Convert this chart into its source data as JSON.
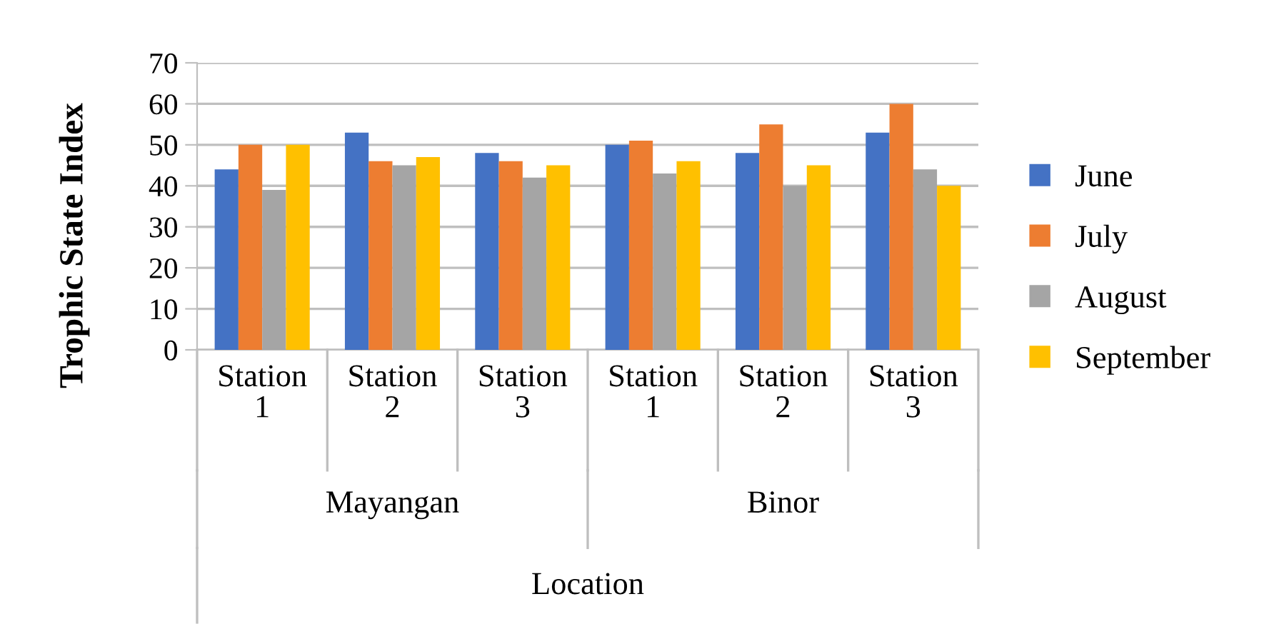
{
  "chart_data": {
    "type": "bar",
    "ylabel": "Trophic State Index",
    "xlabel": "Location",
    "categories": [
      "Station 1",
      "Station 2",
      "Station 3",
      "Station 1",
      "Station 2",
      "Station 3"
    ],
    "annotations": [
      "Mayangan",
      "Binor"
    ],
    "series": [
      {
        "name": "June",
        "color": "#4472c4",
        "values": [
          44,
          53,
          48,
          50,
          48,
          53
        ]
      },
      {
        "name": "July",
        "color": "#ed7d31",
        "values": [
          50,
          46,
          46,
          51,
          55,
          60
        ]
      },
      {
        "name": "August",
        "color": "#a5a5a5",
        "values": [
          39,
          45,
          42,
          43,
          40,
          44
        ]
      },
      {
        "name": "September",
        "color": "#ffc000",
        "values": [
          50,
          47,
          45,
          46,
          45,
          40
        ]
      }
    ],
    "ylim": [
      0,
      70
    ],
    "yticks": [
      0,
      10,
      20,
      30,
      40,
      50,
      60,
      70
    ],
    "grid": "y",
    "legend": "right"
  }
}
